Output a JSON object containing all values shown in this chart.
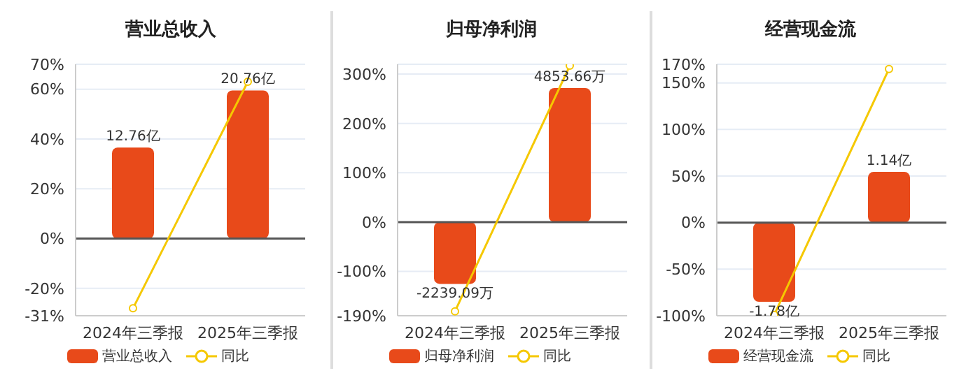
{
  "chart_data": [
    {
      "type": "bar",
      "title": "营业总收入",
      "categories": [
        "2024年三季报",
        "2025年三季报"
      ],
      "series": [
        {
          "name": "营业总收入",
          "color": "#e84a1a",
          "axis": "y2",
          "values": [
            12.76,
            20.76
          ],
          "value_labels": [
            "12.76亿",
            "20.76亿"
          ]
        },
        {
          "name": "同比",
          "type": "line",
          "color": "#f5c800",
          "values": [
            -28,
            63
          ]
        }
      ],
      "ylim": [
        -31,
        70
      ],
      "yticks": [
        {
          "value": -31,
          "label": "-31%"
        },
        {
          "value": -20,
          "label": "-20%"
        },
        {
          "value": 0,
          "label": "0%"
        },
        {
          "value": 20,
          "label": "20%"
        },
        {
          "value": 40,
          "label": "40%"
        },
        {
          "value": 60,
          "label": "60%"
        },
        {
          "value": 70,
          "label": "70%"
        }
      ],
      "grid": "y",
      "legend": "bottom",
      "marker": "circle"
    },
    {
      "type": "bar",
      "title": "归母净利润",
      "categories": [
        "2024年三季报",
        "2025年三季报"
      ],
      "series": [
        {
          "name": "归母净利润",
          "color": "#e84a1a",
          "axis": "y2",
          "values": [
            -2239.09,
            4853.66
          ],
          "value_labels": [
            "-2239.09万",
            "4853.66万"
          ]
        },
        {
          "name": "同比",
          "type": "line",
          "color": "#f5c800",
          "values": [
            -181,
            317
          ]
        }
      ],
      "ylim": [
        -190,
        320
      ],
      "yticks": [
        {
          "value": -190,
          "label": "-190%"
        },
        {
          "value": -100,
          "label": "-100%"
        },
        {
          "value": 0,
          "label": "0%"
        },
        {
          "value": 100,
          "label": "100%"
        },
        {
          "value": 200,
          "label": "200%"
        },
        {
          "value": 300,
          "label": "300%"
        }
      ],
      "grid": "y",
      "legend": "bottom",
      "marker": "circle"
    },
    {
      "type": "bar",
      "title": "经营现金流",
      "categories": [
        "2024年三季报",
        "2025年三季报"
      ],
      "series": [
        {
          "name": "经营现金流",
          "color": "#e84a1a",
          "axis": "y2",
          "values": [
            -1.78,
            1.14
          ],
          "value_labels": [
            "-1.78亿",
            "1.14亿"
          ]
        },
        {
          "name": "同比",
          "type": "line",
          "color": "#f5c800",
          "values": [
            -99,
            165
          ]
        }
      ],
      "ylim": [
        -100,
        170
      ],
      "yticks": [
        {
          "value": -100,
          "label": "-100%"
        },
        {
          "value": -50,
          "label": "-50%"
        },
        {
          "value": 0,
          "label": "0%"
        },
        {
          "value": 50,
          "label": "50%"
        },
        {
          "value": 100,
          "label": "100%"
        },
        {
          "value": 150,
          "label": "150%"
        },
        {
          "value": 170,
          "label": "170%"
        }
      ],
      "grid": "y",
      "legend": "bottom",
      "marker": "circle"
    }
  ]
}
